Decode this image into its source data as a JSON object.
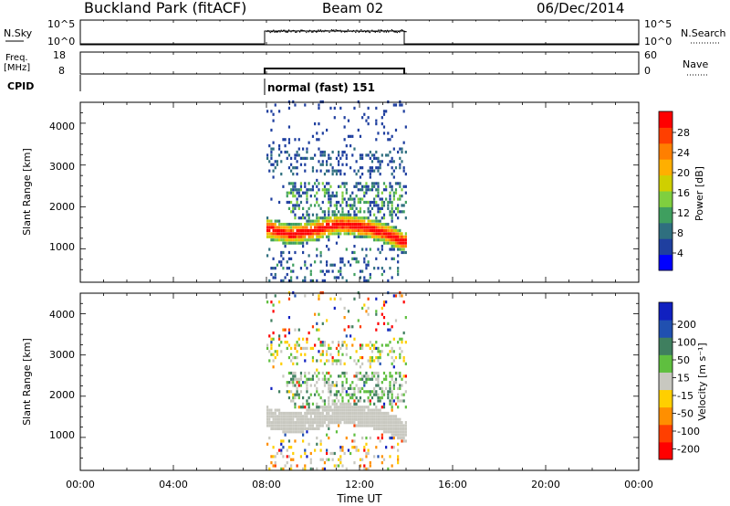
{
  "header": {
    "site": "Buckland Park (fitACF)",
    "beam": "Beam 02",
    "date": "06/Dec/2014"
  },
  "nsky_panel": {
    "left_label": "N.Sky",
    "left_ticks": [
      "10^5",
      "10^0"
    ],
    "right_ticks": [
      "10^5",
      "10^0"
    ],
    "right_label": "N.Search"
  },
  "freq_panel": {
    "left_label_1": "Freq.",
    "left_label_2": "[MHz]",
    "left_ticks": [
      "18",
      "8"
    ],
    "right_ticks": [
      "60",
      "0"
    ],
    "right_label": "Nave"
  },
  "cpid": {
    "label": "CPID",
    "mode": "normal (fast) 151"
  },
  "power_panel": {
    "ylabel": "Slant Range [km]",
    "y_ticks": [
      "4000",
      "3000",
      "2000",
      "1000"
    ],
    "colorbar_label": "Power [dB]",
    "colorbar_ticks": [
      "28",
      "24",
      "20",
      "16",
      "12",
      "8",
      "4"
    ],
    "colors": [
      "#0000ff",
      "#1f3f9f",
      "#2f6f7f",
      "#3f9f5f",
      "#7fcf3f",
      "#cfcf00",
      "#ffaf00",
      "#ff7f00",
      "#ff3f00",
      "#ff0000"
    ]
  },
  "velocity_panel": {
    "ylabel": "Slant Range [km]",
    "y_ticks": [
      "4000",
      "3000",
      "2000",
      "1000"
    ],
    "colorbar_label": "Velocity [m s⁻¹]",
    "colorbar_ticks": [
      "200",
      "100",
      "50",
      "15",
      "-15",
      "-50",
      "-100",
      "-200"
    ],
    "colors": [
      "#1020c0",
      "#2050b0",
      "#3f7f5f",
      "#5fbf3f",
      "#c8c8c0",
      "#ffcf00",
      "#ff8f00",
      "#ff3f00",
      "#ff0000"
    ]
  },
  "x_axis": {
    "label": "Time UT",
    "ticks": [
      "00:00",
      "04:00",
      "08:00",
      "12:00",
      "16:00",
      "20:00",
      "00:00"
    ]
  },
  "chart_data": {
    "type": "heatmap",
    "title": "Buckland Park (fitACF) Beam 02 06/Dec/2014",
    "xlabel": "Time UT",
    "ylabel": "Slant Range [km]",
    "xlim": [
      "00:00",
      "24:00"
    ],
    "ylim": [
      200,
      4500
    ],
    "data_time_range": [
      "08:00",
      "14:00"
    ],
    "power_colorbar": {
      "label": "Power [dB]",
      "range": [
        0,
        30
      ]
    },
    "velocity_colorbar": {
      "label": "Velocity [m s-1]",
      "range": [
        -250,
        250
      ]
    },
    "power_echo_band": {
      "x_hours": [
        8.0,
        9.0,
        10.0,
        11.0,
        12.0,
        13.0,
        14.0
      ],
      "slant_range_km": [
        1450,
        1300,
        1400,
        1550,
        1500,
        1350,
        1100
      ],
      "peak_power_db": 26
    },
    "velocity_ground_scatter_km": 1500
  }
}
